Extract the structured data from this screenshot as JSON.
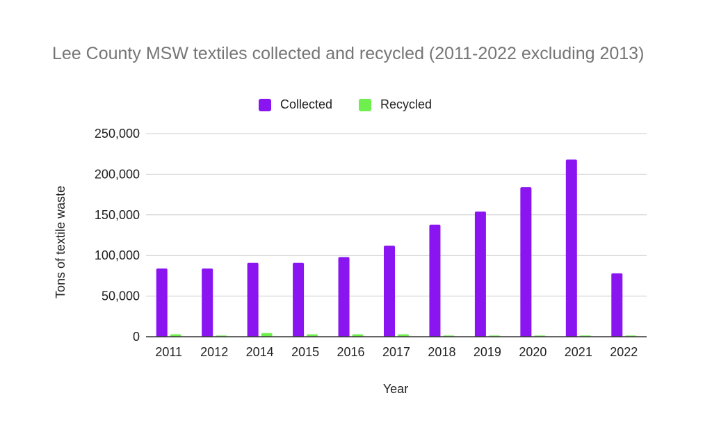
{
  "chart_data": {
    "type": "bar",
    "title": "Lee County MSW textiles collected and recycled (2011-2022 excluding 2013)",
    "xlabel": "Year",
    "ylabel": "Tons of textile waste",
    "categories": [
      "2011",
      "2012",
      "2014",
      "2015",
      "2016",
      "2017",
      "2018",
      "2019",
      "2020",
      "2021",
      "2022"
    ],
    "series": [
      {
        "name": "Collected",
        "color": "#8a15f0",
        "values": [
          84000,
          84000,
          91000,
          91000,
          98000,
          112000,
          138000,
          154000,
          184000,
          218000,
          78000
        ]
      },
      {
        "name": "Recycled",
        "color": "#6fef4e",
        "values": [
          3000,
          1500,
          4500,
          3000,
          3000,
          3000,
          1500,
          1500,
          1500,
          1500,
          1500
        ]
      }
    ],
    "ylim": [
      0,
      250000
    ],
    "yticks": [
      0,
      50000,
      100000,
      150000,
      200000,
      250000
    ],
    "ytick_labels": [
      "0",
      "50,000",
      "100,000",
      "150,000",
      "200,000",
      "250,000"
    ],
    "grid": true,
    "legend_position": "top"
  }
}
